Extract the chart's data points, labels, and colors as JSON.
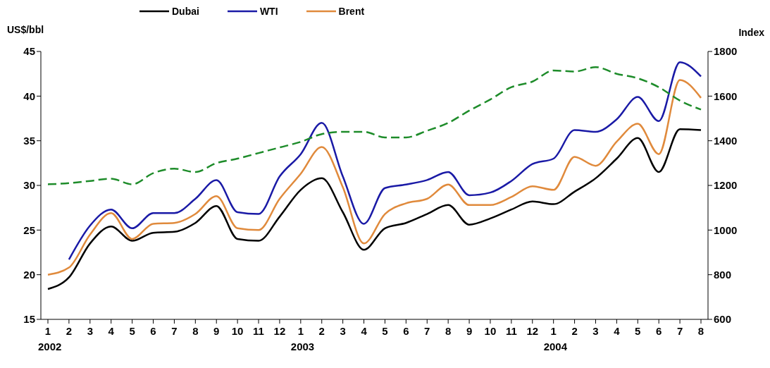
{
  "chart_data": {
    "type": "line",
    "ylabel": "US$/bbl",
    "y2label": "Index",
    "categories": [
      "1\n2002",
      "2",
      "3",
      "4",
      "5",
      "6",
      "7",
      "8",
      "9",
      "10",
      "11",
      "12",
      "1\n2003",
      "2",
      "3",
      "4",
      "5",
      "6",
      "7",
      "8",
      "9",
      "10",
      "11",
      "12",
      "1\n2004",
      "2",
      "3",
      "4",
      "5",
      "6",
      "7",
      "8"
    ],
    "series": [
      {
        "name": "Dubai",
        "color": "#000000",
        "values": [
          18.4,
          19.7,
          23.5,
          25.4,
          23.8,
          24.7,
          24.8,
          25.8,
          27.7,
          24,
          23.8,
          26.5,
          29.5,
          30.8,
          27,
          22.8,
          25.2,
          25.8,
          26.8,
          27.8,
          25.6,
          26.3,
          27.3,
          28.2,
          27.9,
          29.3,
          30.8,
          33,
          35.3,
          31.5,
          36.3,
          36.2
        ]
      },
      {
        "name": "WTI",
        "color": "#1a1aa6",
        "values": [
          null,
          21.7,
          25.5,
          27.3,
          25.2,
          26.9,
          26.9,
          28.5,
          30.6,
          27,
          26.8,
          31,
          33.5,
          37,
          31,
          25.7,
          29.7,
          30.1,
          30.6,
          31.5,
          28.9,
          29.2,
          30.5,
          32.4,
          33,
          36.2,
          36,
          37.4,
          39.9,
          37.2,
          43.8,
          42.2
        ]
      },
      {
        "name": "Brent",
        "color": "#e08a3c",
        "values": [
          20,
          20.8,
          24.5,
          26.9,
          24,
          25.7,
          25.8,
          26.8,
          28.8,
          25.2,
          25,
          28.5,
          31.3,
          34.3,
          29.8,
          23.5,
          26.8,
          28,
          28.5,
          30.1,
          27.8,
          27.8,
          28.7,
          29.9,
          29.5,
          33.2,
          32.2,
          34.9,
          36.9,
          33.5,
          41.8,
          39.8
        ]
      },
      {
        "color": "#1e8c2a",
        "axis": "y2",
        "line_style": "dashed",
        "values": [
          1205,
          1210,
          1220,
          1230,
          1205,
          1255,
          1275,
          1260,
          1300,
          1320,
          1345,
          1370,
          1395,
          1430,
          1440,
          1440,
          1415,
          1415,
          1445,
          1480,
          1535,
          1585,
          1640,
          1665,
          1715,
          1710,
          1730,
          1700,
          1680,
          1640,
          1580,
          1540
        ]
      }
    ],
    "ylim": [
      15,
      45
    ],
    "yticks": [
      15,
      20,
      25,
      30,
      35,
      40,
      45
    ],
    "y2lim": [
      600,
      1800
    ],
    "y2ticks": [
      600,
      800,
      1000,
      1200,
      1400,
      1600,
      1800
    ],
    "legend": "top",
    "grid": false,
    "marker": "none",
    "line_style": "solid"
  }
}
